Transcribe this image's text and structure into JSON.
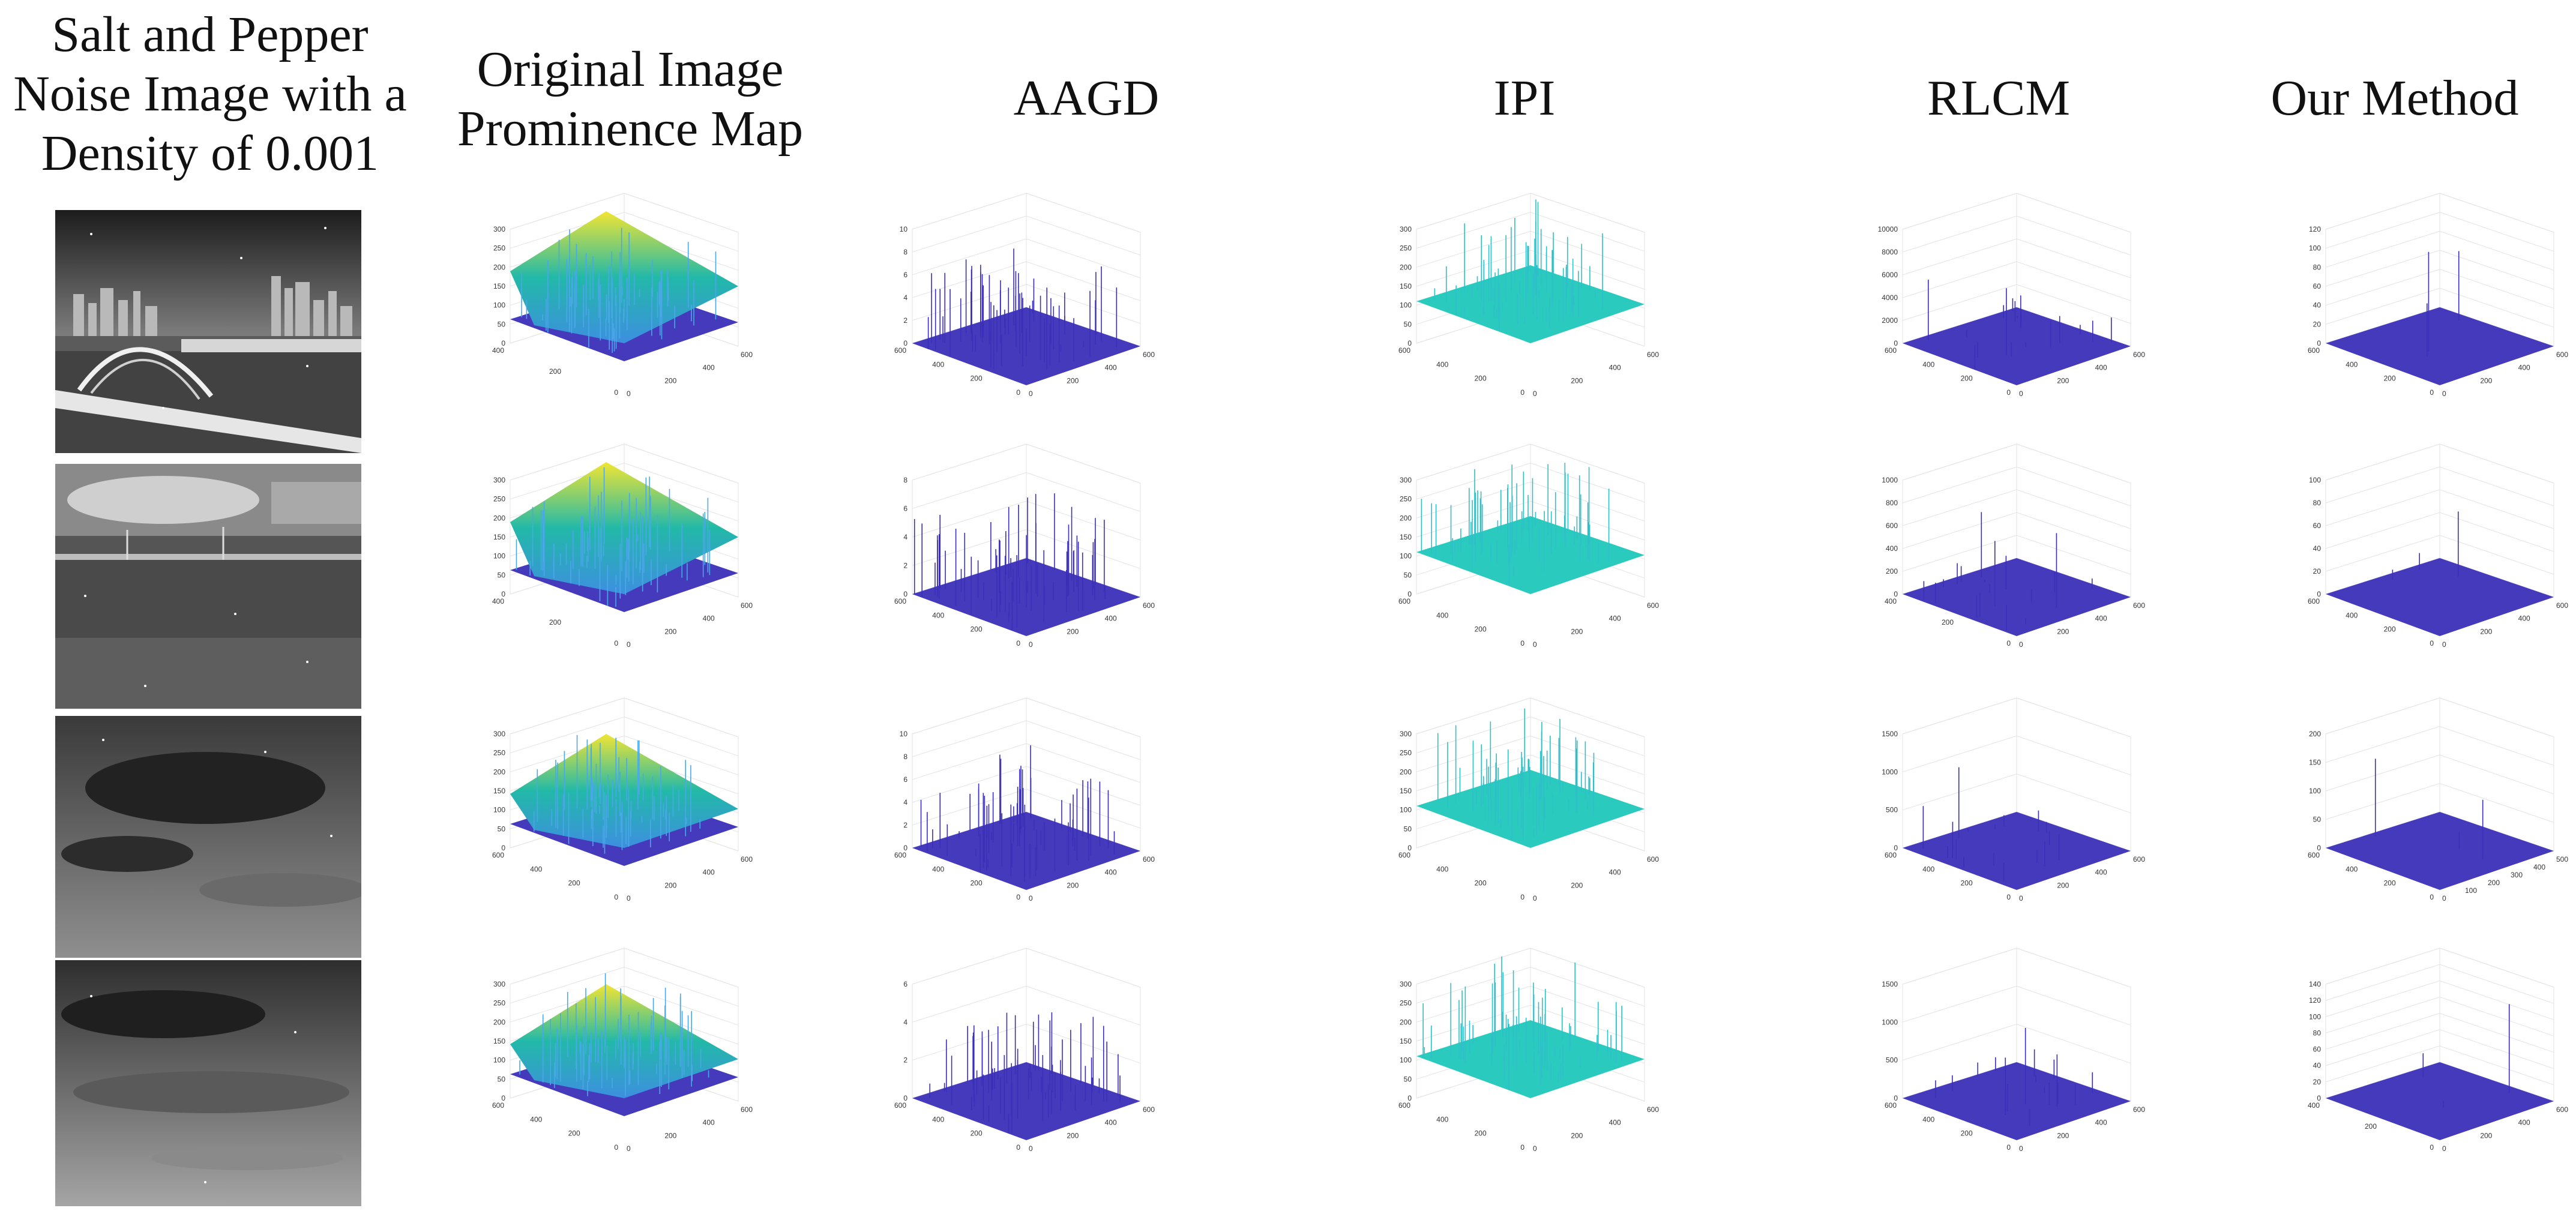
{
  "headers": {
    "input": "Salt and Pepper Noise Image with a Density of 0.001",
    "original": "Original Image Prominence Map",
    "aagd": "AAGD",
    "ipi": "IPI",
    "rlcm": "RLCM",
    "ours": "Our Method"
  },
  "colors": {
    "parula_low": "#3b2fb8",
    "parula_mid": "#16b8c4",
    "parula_high": "#f2e532",
    "ipi_surface": "#20c7bc",
    "grid": "#e3e3e3"
  },
  "chart_data": [
    {
      "type": "surface3d",
      "title": "Original Image Prominence Map",
      "row": 1,
      "zticks": [
        "300",
        "250",
        "200",
        "150",
        "100",
        "50",
        "0"
      ],
      "xticks": [
        "0",
        "200",
        "400",
        "600"
      ],
      "yticks": [
        "0",
        "200",
        "400"
      ],
      "zlim": [
        0,
        300
      ]
    },
    {
      "type": "surface3d",
      "title": "AAGD",
      "row": 1,
      "zticks": [
        "10",
        "8",
        "6",
        "4",
        "2",
        "0"
      ],
      "xticks": [
        "0",
        "200",
        "400",
        "600"
      ],
      "yticks": [
        "0",
        "200",
        "400",
        "600"
      ],
      "zlim": [
        0,
        10
      ]
    },
    {
      "type": "surface3d",
      "title": "IPI",
      "row": 1,
      "zticks": [
        "300",
        "250",
        "200",
        "150",
        "100",
        "50",
        "0"
      ],
      "xticks": [
        "0",
        "200",
        "400",
        "600"
      ],
      "yticks": [
        "0",
        "200",
        "400",
        "600"
      ],
      "zlim": [
        0,
        300
      ]
    },
    {
      "type": "surface3d",
      "title": "RLCM",
      "row": 1,
      "zticks": [
        "10000",
        "8000",
        "6000",
        "4000",
        "2000",
        "0"
      ],
      "xticks": [
        "0",
        "200",
        "400",
        "600"
      ],
      "yticks": [
        "0",
        "200",
        "400",
        "600"
      ],
      "zlim": [
        0,
        10000
      ]
    },
    {
      "type": "surface3d",
      "title": "Our Method",
      "row": 1,
      "zticks": [
        "120",
        "100",
        "80",
        "60",
        "40",
        "20",
        "0"
      ],
      "xticks": [
        "0",
        "200",
        "400",
        "600"
      ],
      "yticks": [
        "0",
        "200",
        "400",
        "600"
      ],
      "zlim": [
        0,
        120
      ]
    },
    {
      "type": "surface3d",
      "title": "Original Image Prominence Map",
      "row": 2,
      "zticks": [
        "300",
        "250",
        "200",
        "150",
        "100",
        "50",
        "0"
      ],
      "xticks": [
        "0",
        "200",
        "400",
        "600"
      ],
      "yticks": [
        "0",
        "200",
        "400"
      ],
      "zlim": [
        0,
        300
      ]
    },
    {
      "type": "surface3d",
      "title": "AAGD",
      "row": 2,
      "zticks": [
        "8",
        "6",
        "4",
        "2",
        "0"
      ],
      "xticks": [
        "0",
        "200",
        "400",
        "600"
      ],
      "yticks": [
        "0",
        "200",
        "400",
        "600"
      ],
      "zlim": [
        0,
        8
      ]
    },
    {
      "type": "surface3d",
      "title": "IPI",
      "row": 2,
      "zticks": [
        "300",
        "250",
        "200",
        "150",
        "100",
        "50",
        "0"
      ],
      "xticks": [
        "0",
        "200",
        "400",
        "600"
      ],
      "yticks": [
        "0",
        "200",
        "400",
        "600"
      ],
      "zlim": [
        0,
        300
      ]
    },
    {
      "type": "surface3d",
      "title": "RLCM",
      "row": 2,
      "zticks": [
        "1000",
        "800",
        "600",
        "400",
        "200",
        "0"
      ],
      "xticks": [
        "0",
        "200",
        "400",
        "600"
      ],
      "yticks": [
        "0",
        "200",
        "400"
      ],
      "zlim": [
        0,
        1000
      ]
    },
    {
      "type": "surface3d",
      "title": "Our Method",
      "row": 2,
      "zticks": [
        "100",
        "80",
        "60",
        "40",
        "20",
        "0"
      ],
      "xticks": [
        "0",
        "200",
        "400",
        "600"
      ],
      "yticks": [
        "0",
        "200",
        "400",
        "600"
      ],
      "zlim": [
        0,
        100
      ]
    },
    {
      "type": "surface3d",
      "title": "Original Image Prominence Map",
      "row": 3,
      "zticks": [
        "300",
        "250",
        "200",
        "150",
        "100",
        "50",
        "0"
      ],
      "xticks": [
        "0",
        "200",
        "400",
        "600"
      ],
      "yticks": [
        "0",
        "200",
        "400",
        "600"
      ],
      "zlim": [
        0,
        300
      ]
    },
    {
      "type": "surface3d",
      "title": "AAGD",
      "row": 3,
      "zticks": [
        "10",
        "8",
        "6",
        "4",
        "2",
        "0"
      ],
      "xticks": [
        "0",
        "200",
        "400",
        "600"
      ],
      "yticks": [
        "0",
        "200",
        "400",
        "600"
      ],
      "zlim": [
        0,
        10
      ]
    },
    {
      "type": "surface3d",
      "title": "IPI",
      "row": 3,
      "zticks": [
        "300",
        "250",
        "200",
        "150",
        "100",
        "50",
        "0"
      ],
      "xticks": [
        "0",
        "200",
        "400",
        "600"
      ],
      "yticks": [
        "0",
        "200",
        "400",
        "600"
      ],
      "zlim": [
        0,
        300
      ]
    },
    {
      "type": "surface3d",
      "title": "RLCM",
      "row": 3,
      "zticks": [
        "1500",
        "1000",
        "500",
        "0"
      ],
      "xticks": [
        "0",
        "200",
        "400",
        "600"
      ],
      "yticks": [
        "0",
        "200",
        "400",
        "600"
      ],
      "zlim": [
        0,
        1500
      ]
    },
    {
      "type": "surface3d",
      "title": "Our Method",
      "row": 3,
      "zticks": [
        "200",
        "150",
        "100",
        "50",
        "0"
      ],
      "xticks": [
        "0",
        "100",
        "200",
        "300",
        "400",
        "500"
      ],
      "yticks": [
        "0",
        "200",
        "400",
        "600"
      ],
      "zlim": [
        0,
        200
      ]
    },
    {
      "type": "surface3d",
      "title": "Original Image Prominence Map",
      "row": 4,
      "zticks": [
        "300",
        "250",
        "200",
        "150",
        "100",
        "50",
        "0"
      ],
      "xticks": [
        "0",
        "200",
        "400",
        "600"
      ],
      "yticks": [
        "0",
        "200",
        "400",
        "600"
      ],
      "zlim": [
        0,
        300
      ]
    },
    {
      "type": "surface3d",
      "title": "AAGD",
      "row": 4,
      "zticks": [
        "6",
        "4",
        "2",
        "0"
      ],
      "xticks": [
        "0",
        "200",
        "400",
        "600"
      ],
      "yticks": [
        "0",
        "200",
        "400",
        "600"
      ],
      "zlim": [
        0,
        6
      ]
    },
    {
      "type": "surface3d",
      "title": "IPI",
      "row": 4,
      "zticks": [
        "300",
        "250",
        "200",
        "150",
        "100",
        "50",
        "0"
      ],
      "xticks": [
        "0",
        "200",
        "400",
        "600"
      ],
      "yticks": [
        "0",
        "200",
        "400",
        "600"
      ],
      "zlim": [
        0,
        300
      ]
    },
    {
      "type": "surface3d",
      "title": "RLCM",
      "row": 4,
      "zticks": [
        "1500",
        "1000",
        "500",
        "0"
      ],
      "xticks": [
        "0",
        "200",
        "400",
        "600"
      ],
      "yticks": [
        "0",
        "200",
        "400",
        "600"
      ],
      "zlim": [
        0,
        1500
      ]
    },
    {
      "type": "surface3d",
      "title": "Our Method",
      "row": 4,
      "zticks": [
        "140",
        "120",
        "100",
        "80",
        "60",
        "40",
        "20",
        "0"
      ],
      "xticks": [
        "0",
        "200",
        "400",
        "600"
      ],
      "yticks": [
        "0",
        "200",
        "400"
      ],
      "zlim": [
        0,
        140
      ]
    }
  ]
}
